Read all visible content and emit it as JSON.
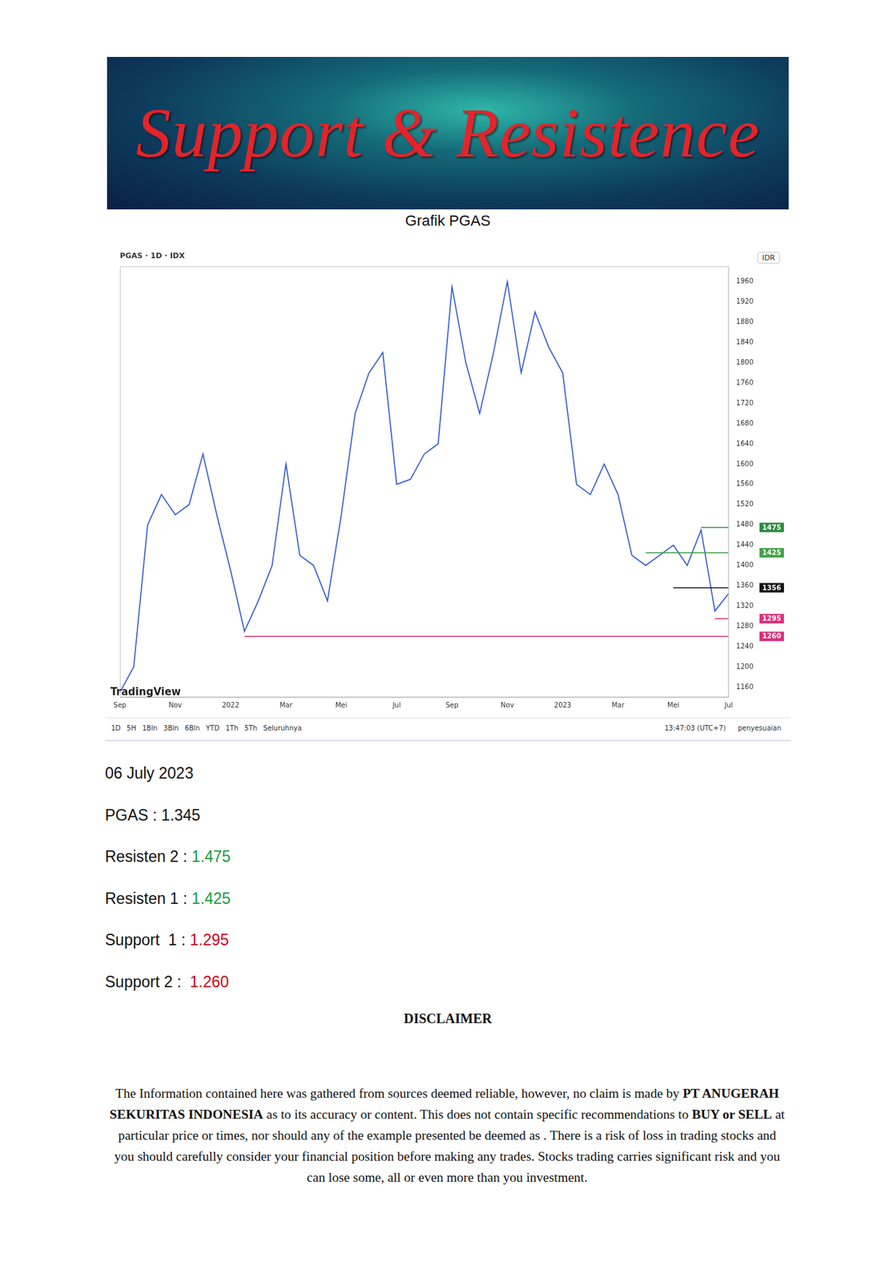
{
  "banner": {
    "title": "Support & Resistence"
  },
  "caption": "Grafik PGAS",
  "chart_data": {
    "type": "line",
    "title": "PGAS · 1D · IDX",
    "categories": [
      "Sep",
      null,
      null,
      null,
      "Nov",
      null,
      null,
      null,
      "2022",
      null,
      null,
      null,
      "Mar",
      null,
      null,
      null,
      "Mei",
      null,
      null,
      null,
      "Jul",
      null,
      null,
      null,
      "Sep",
      null,
      null,
      null,
      "Nov",
      null,
      null,
      null,
      "2023",
      null,
      null,
      null,
      "Mar",
      null,
      null,
      null,
      "Mei",
      null,
      null,
      null,
      "Jul"
    ],
    "series": [
      {
        "color": "#2f55d4",
        "values": [
          1150,
          1200,
          1480,
          1540,
          1500,
          1520,
          1620,
          1500,
          1390,
          1270,
          1330,
          1400,
          1600,
          1420,
          1400,
          1330,
          1500,
          1700,
          1780,
          1820,
          1560,
          1570,
          1620,
          1640,
          1950,
          1800,
          1700,
          1820,
          1960,
          1780,
          1900,
          1830,
          1780,
          1560,
          1540,
          1600,
          1540,
          1420,
          1400,
          1420,
          1440,
          1400,
          1470,
          1310,
          1345
        ]
      }
    ],
    "levels": [
      {
        "value": 1475,
        "color": "#2e8b3e",
        "start": 42
      },
      {
        "value": 1425,
        "color": "#43a047",
        "start": 38
      },
      {
        "value": 1356,
        "color": "#111111",
        "start": 40
      },
      {
        "value": 1295,
        "color": "#e0307a",
        "start": 43
      },
      {
        "value": 1260,
        "color": "#d9307a",
        "start": 9
      }
    ],
    "ylim": [
      1140,
      1990
    ],
    "yticks": [
      1160,
      1200,
      1240,
      1280,
      1320,
      1360,
      1400,
      1440,
      1480,
      1520,
      1560,
      1600,
      1640,
      1680,
      1720,
      1760,
      1800,
      1840,
      1880,
      1920,
      1960
    ],
    "grid": false
  },
  "chart_frame": {
    "currency": "IDR",
    "watermark": "TradingView",
    "toolbar": [
      "1D",
      "5H",
      "1Bln",
      "3Bln",
      "6Bln",
      "YTD",
      "1Th",
      "5Th",
      "Seluruhnya"
    ],
    "time": "13:47:03 (UTC+7)",
    "adjust": "penyesuaian"
  },
  "report": {
    "date": "06 July 2023",
    "lines": [
      {
        "label": "PGAS : ",
        "value": "1.345",
        "color": "#111111"
      },
      {
        "label": "Resisten 2 : ",
        "value": "1.475",
        "color": "#1a9b3a"
      },
      {
        "label": "Resisten 1 : ",
        "value": "1.425",
        "color": "#1a9b3a"
      },
      {
        "label": "Support  1 : ",
        "value": "1.295",
        "color": "#d0021b"
      },
      {
        "label": "Support 2 :  ",
        "value": "1.260",
        "color": "#d0021b"
      }
    ]
  },
  "disclaimer": {
    "title": "DISCLAIMER",
    "segments": [
      {
        "text": "The Information contained here was gathered from sources deemed reliable, however, no claim is made by ",
        "bold": false
      },
      {
        "text": "PT ANUGERAH SEKURITAS INDONESIA",
        "bold": true
      },
      {
        "text": " as to its accuracy or content. This does not contain specific recommendations to ",
        "bold": false
      },
      {
        "text": "BUY or SELL",
        "bold": true
      },
      {
        "text": " at particular price or times, nor should any of the example presented be deemed as . There is a risk of loss in trading stocks and you should carefully consider your financial position before making any trades. Stocks trading carries significant risk and you can lose some, all or even more than you investment.",
        "bold": false
      }
    ]
  }
}
